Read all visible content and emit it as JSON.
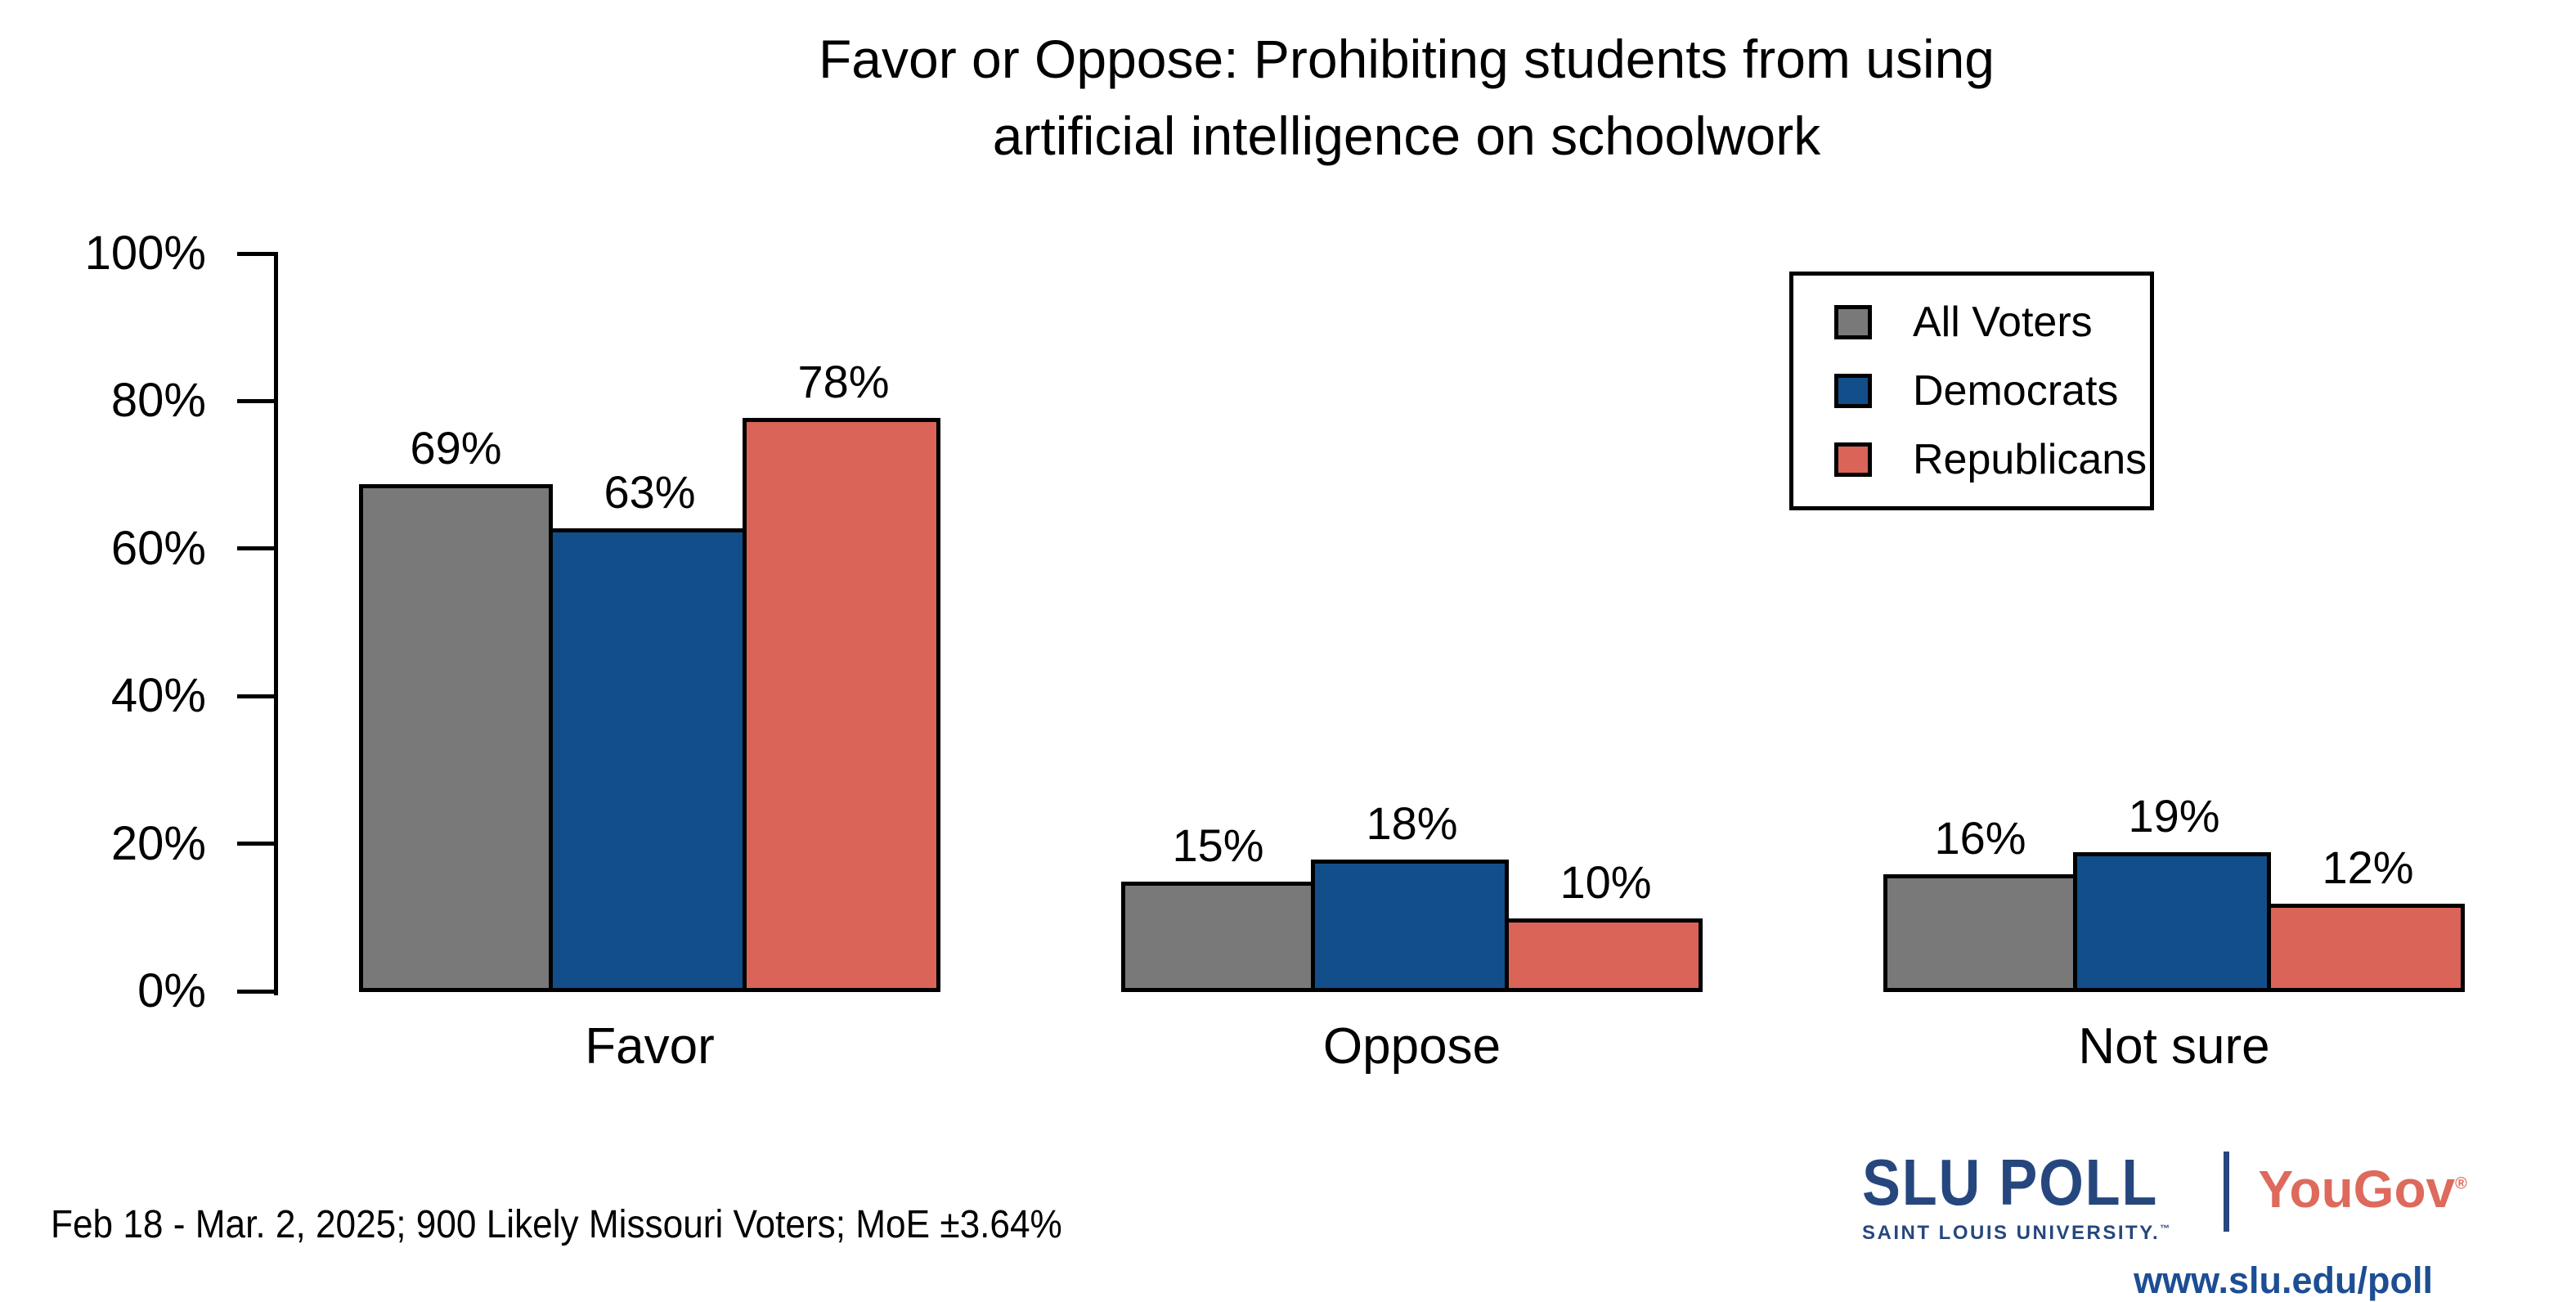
{
  "title": {
    "line1": "Favor or Oppose: Prohibiting students from using",
    "line2": "artificial intelligence on schoolwork"
  },
  "chart_data": {
    "type": "bar",
    "title": "Favor or Oppose: Prohibiting students from using artificial intelligence on schoolwork",
    "categories": [
      "Favor",
      "Oppose",
      "Not sure"
    ],
    "series": [
      {
        "name": "All Voters",
        "color": "#797979",
        "values": [
          69,
          15,
          16
        ],
        "display": [
          "69%",
          "15%",
          "16%"
        ]
      },
      {
        "name": "Democrats",
        "color": "#124F8A",
        "values": [
          63,
          18,
          19
        ],
        "display": [
          "63%",
          "18%",
          "19%"
        ]
      },
      {
        "name": "Republicans",
        "color": "#D96457",
        "values": [
          78,
          10,
          12
        ],
        "display": [
          "78%",
          "10%",
          "12%"
        ]
      }
    ],
    "xlabel": "",
    "ylabel": "",
    "ylim": [
      0,
      100
    ],
    "yticks": [
      "0%",
      "20%",
      "40%",
      "60%",
      "80%",
      "100%"
    ],
    "grid": false,
    "legend_position": "top-right",
    "bar_outline_color": "#000000"
  },
  "footer": {
    "note": "Feb 18 - Mar. 2, 2025; 900 Likely Missouri Voters; MoE ±3.64%"
  },
  "branding": {
    "slu_poll": "SLU POLL",
    "slu_sub": "SAINT LOUIS UNIVERSITY.",
    "slu_tm": "™",
    "yougov": "YouGov",
    "yougov_reg": "®",
    "url": "www.slu.edu/poll",
    "slu_blue": "#26477E",
    "link_blue": "#1D4E94",
    "yougov_coral": "#DD6A5C"
  }
}
